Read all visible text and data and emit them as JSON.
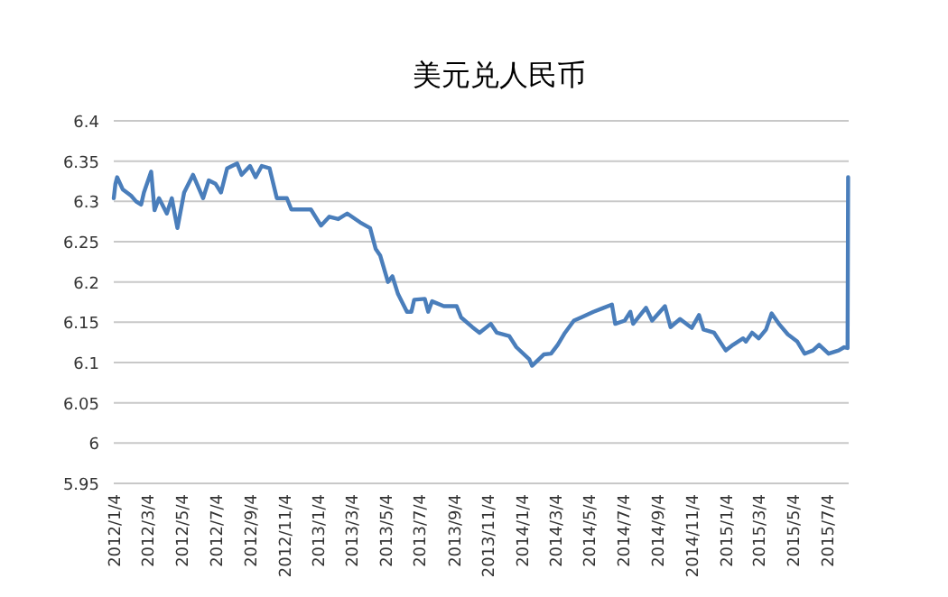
{
  "chart_data": {
    "type": "line",
    "title": "美元兑人民币",
    "x": [
      "2012-01-04",
      "2012-01-07",
      "2012-01-10",
      "2012-01-20",
      "2012-02-04",
      "2012-02-13",
      "2012-02-22",
      "2012-02-27",
      "2012-03-11",
      "2012-03-17",
      "2012-03-25",
      "2012-04-08",
      "2012-04-17",
      "2012-04-22",
      "2012-04-27",
      "2012-05-09",
      "2012-05-25",
      "2012-06-12",
      "2012-06-22",
      "2012-07-04",
      "2012-07-14",
      "2012-07-25",
      "2012-08-12",
      "2012-08-20",
      "2012-09-04",
      "2012-09-14",
      "2012-09-25",
      "2012-10-09",
      "2012-10-22",
      "2012-11-09",
      "2012-11-17",
      "2012-12-07",
      "2012-12-22",
      "2013-01-09",
      "2013-01-24",
      "2013-02-09",
      "2013-02-25",
      "2013-03-20",
      "2013-04-07",
      "2013-04-17",
      "2013-04-25",
      "2013-05-09",
      "2013-05-17",
      "2013-05-27",
      "2013-06-12",
      "2013-06-20",
      "2013-06-25",
      "2013-07-14",
      "2013-07-20",
      "2013-07-27",
      "2013-08-17",
      "2013-09-09",
      "2013-09-17",
      "2013-10-07",
      "2013-10-20",
      "2013-11-09",
      "2013-11-20",
      "2013-12-12",
      "2013-12-25",
      "2014-01-17",
      "2014-01-22",
      "2014-02-12",
      "2014-02-25",
      "2014-03-09",
      "2014-03-22",
      "2014-04-07",
      "2014-04-20",
      "2014-05-12",
      "2014-05-27",
      "2014-06-14",
      "2014-06-20",
      "2014-07-07",
      "2014-07-17",
      "2014-07-22",
      "2014-08-14",
      "2014-08-25",
      "2014-09-17",
      "2014-09-27",
      "2014-10-14",
      "2014-11-04",
      "2014-11-17",
      "2014-11-25",
      "2014-12-14",
      "2015-01-04",
      "2015-01-17",
      "2015-02-04",
      "2015-02-09",
      "2015-02-20",
      "2015-03-04",
      "2015-03-17",
      "2015-03-27",
      "2015-04-09",
      "2015-04-25",
      "2015-05-12",
      "2015-05-25",
      "2015-06-09",
      "2015-06-20",
      "2015-07-07",
      "2015-07-25",
      "2015-08-04",
      "2015-08-10",
      "2015-08-11"
    ],
    "series": [
      {
        "color": "#4a7ebb",
        "values": [
          6.304,
          6.322,
          6.33,
          6.315,
          6.307,
          6.3,
          6.296,
          6.311,
          6.337,
          6.289,
          6.304,
          6.285,
          6.304,
          6.285,
          6.267,
          6.311,
          6.333,
          6.304,
          6.326,
          6.322,
          6.311,
          6.341,
          6.347,
          6.333,
          6.344,
          6.33,
          6.344,
          6.341,
          6.304,
          6.304,
          6.29,
          6.29,
          6.29,
          6.27,
          6.281,
          6.278,
          6.285,
          6.274,
          6.267,
          6.241,
          6.233,
          6.2,
          6.207,
          6.185,
          6.163,
          6.163,
          6.178,
          6.179,
          6.163,
          6.176,
          6.17,
          6.17,
          6.156,
          6.144,
          6.137,
          6.148,
          6.137,
          6.133,
          6.119,
          6.104,
          6.096,
          6.11,
          6.111,
          6.122,
          6.137,
          6.152,
          6.156,
          6.163,
          6.167,
          6.172,
          6.148,
          6.152,
          6.163,
          6.148,
          6.168,
          6.152,
          6.17,
          6.144,
          6.154,
          6.143,
          6.159,
          6.141,
          6.137,
          6.115,
          6.122,
          6.13,
          6.126,
          6.137,
          6.13,
          6.141,
          6.161,
          6.148,
          6.135,
          6.126,
          6.111,
          6.115,
          6.122,
          6.111,
          6.115,
          6.119,
          6.118,
          6.33
        ]
      }
    ],
    "xlim": [
      "2012-01-04",
      "2015-08-12"
    ],
    "xticks": [
      {
        "value": "2012-01-04",
        "label": "2012/1/4"
      },
      {
        "value": "2012-03-04",
        "label": "2012/3/4"
      },
      {
        "value": "2012-05-04",
        "label": "2012/5/4"
      },
      {
        "value": "2012-07-04",
        "label": "2012/7/4"
      },
      {
        "value": "2012-09-04",
        "label": "2012/9/4"
      },
      {
        "value": "2012-11-04",
        "label": "2012/11/4"
      },
      {
        "value": "2013-01-04",
        "label": "2013/1/4"
      },
      {
        "value": "2013-03-04",
        "label": "2013/3/4"
      },
      {
        "value": "2013-05-04",
        "label": "2013/5/4"
      },
      {
        "value": "2013-07-04",
        "label": "2013/7/4"
      },
      {
        "value": "2013-09-04",
        "label": "2013/9/4"
      },
      {
        "value": "2013-11-04",
        "label": "2013/11/4"
      },
      {
        "value": "2014-01-04",
        "label": "2014/1/4"
      },
      {
        "value": "2014-03-04",
        "label": "2014/3/4"
      },
      {
        "value": "2014-05-04",
        "label": "2014/5/4"
      },
      {
        "value": "2014-07-04",
        "label": "2014/7/4"
      },
      {
        "value": "2014-09-04",
        "label": "2014/9/4"
      },
      {
        "value": "2014-11-04",
        "label": "2014/11/4"
      },
      {
        "value": "2015-01-04",
        "label": "2015/1/4"
      },
      {
        "value": "2015-03-04",
        "label": "2015/3/4"
      },
      {
        "value": "2015-05-04",
        "label": "2015/5/4"
      },
      {
        "value": "2015-07-04",
        "label": "2015/7/4"
      }
    ],
    "ylim": [
      5.95,
      6.4
    ],
    "yticks": [
      5.95,
      6,
      6.05,
      6.1,
      6.15,
      6.2,
      6.25,
      6.3,
      6.35,
      6.4
    ],
    "grid": "y"
  }
}
